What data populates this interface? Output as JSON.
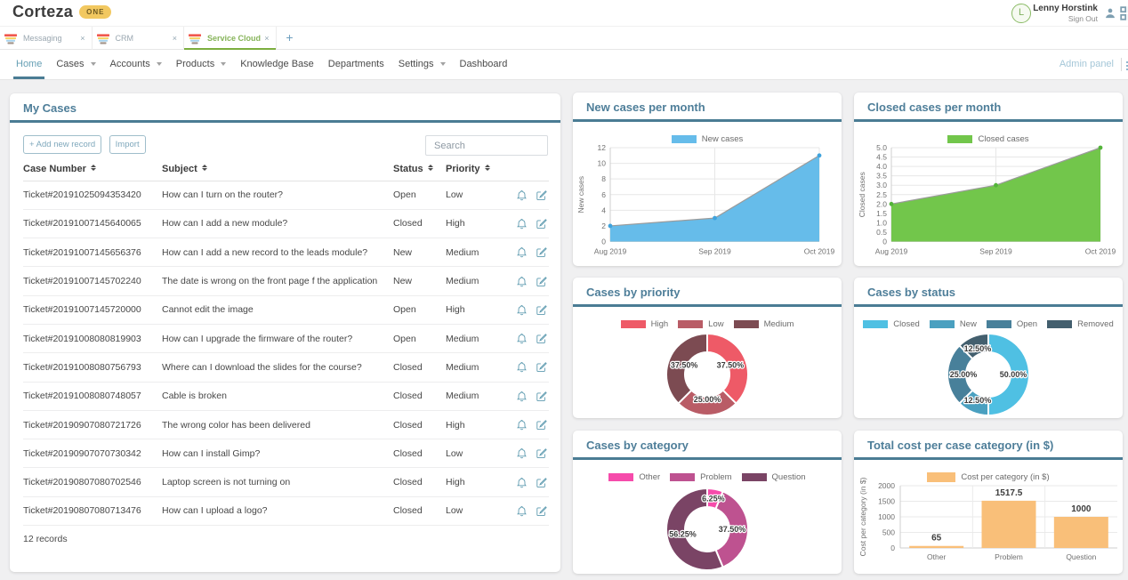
{
  "app": {
    "name": "Corteza",
    "badge": "ONE"
  },
  "user": {
    "initial": "L",
    "name": "Lenny Horstink",
    "sign_out": "Sign Out"
  },
  "icons": {
    "close": "×",
    "new_tab": "+"
  },
  "tabs": [
    {
      "label": "Messaging",
      "active": false
    },
    {
      "label": "CRM",
      "active": false
    },
    {
      "label": "Service Cloud",
      "active": true
    }
  ],
  "nav": {
    "items": [
      {
        "label": "Home",
        "active": true,
        "caret": false
      },
      {
        "label": "Cases",
        "active": false,
        "caret": true
      },
      {
        "label": "Accounts",
        "active": false,
        "caret": true
      },
      {
        "label": "Products",
        "active": false,
        "caret": true
      },
      {
        "label": "Knowledge Base",
        "active": false,
        "caret": false
      },
      {
        "label": "Departments",
        "active": false,
        "caret": false
      },
      {
        "label": "Settings",
        "active": false,
        "caret": true
      },
      {
        "label": "Dashboard",
        "active": false,
        "caret": false
      }
    ],
    "admin_panel": "Admin panel"
  },
  "cases_panel": {
    "title": "My Cases",
    "add_button": "+ Add new record",
    "import_button": "Import",
    "search_placeholder": "Search",
    "columns": [
      "Case Number",
      "Subject",
      "Status",
      "Priority"
    ],
    "rows": [
      {
        "case_number": "Ticket#20191025094353420",
        "subject": "How can I turn on the router?",
        "status": "Open",
        "priority": "Low"
      },
      {
        "case_number": "Ticket#20191007145640065",
        "subject": "How can I add a new module?",
        "status": "Closed",
        "priority": "High"
      },
      {
        "case_number": "Ticket#20191007145656376",
        "subject": "How can I add a new record to the leads module?",
        "status": "New",
        "priority": "Medium"
      },
      {
        "case_number": "Ticket#20191007145702240",
        "subject": "The date is wrong on the front page f the application",
        "status": "New",
        "priority": "Medium"
      },
      {
        "case_number": "Ticket#20191007145720000",
        "subject": "Cannot edit the image",
        "status": "Open",
        "priority": "High"
      },
      {
        "case_number": "Ticket#20191008080819903",
        "subject": "How can I upgrade the firmware of the router?",
        "status": "Open",
        "priority": "Medium"
      },
      {
        "case_number": "Ticket#20191008080756793",
        "subject": "Where can I download the slides for the course?",
        "status": "Closed",
        "priority": "Medium"
      },
      {
        "case_number": "Ticket#20191008080748057",
        "subject": "Cable is broken",
        "status": "Closed",
        "priority": "Medium"
      },
      {
        "case_number": "Ticket#20190907080721726",
        "subject": "The wrong color has been delivered",
        "status": "Closed",
        "priority": "High"
      },
      {
        "case_number": "Ticket#20190907070730342",
        "subject": "How can I install Gimp?",
        "status": "Closed",
        "priority": "Low"
      },
      {
        "case_number": "Ticket#20190807080702546",
        "subject": "Laptop screen is not turning on",
        "status": "Closed",
        "priority": "High"
      },
      {
        "case_number": "Ticket#20190807080713476",
        "subject": "How can I upload a logo?",
        "status": "Closed",
        "priority": "Low"
      }
    ],
    "footer": "12 records"
  },
  "chart_data": [
    {
      "type": "area",
      "title": "New cases per month",
      "legend": "New cases",
      "ylabel": "New cases",
      "x": [
        "Aug 2019",
        "Sep 2019",
        "Oct 2019"
      ],
      "values": [
        2,
        3,
        11
      ],
      "ylim": [
        0,
        12
      ],
      "yticks": [
        0,
        2,
        4,
        6,
        8,
        10,
        12
      ],
      "ytick_labels": [
        "0",
        "2",
        "4",
        "6",
        "8",
        "10",
        "12"
      ],
      "fill_color": "#66BCEA",
      "dot_color": "#3FA3DD"
    },
    {
      "type": "area",
      "title": "Closed cases per month",
      "legend": "Closed cases",
      "ylabel": "Closed cases",
      "x": [
        "Aug 2019",
        "Sep 2019",
        "Oct 2019"
      ],
      "values": [
        2,
        3,
        5
      ],
      "ylim": [
        0,
        5
      ],
      "yticks": [
        0,
        0.5,
        1,
        1.5,
        2,
        2.5,
        3,
        3.5,
        4,
        4.5,
        5
      ],
      "ytick_labels": [
        "0",
        "0.5",
        "1.0",
        "1.5",
        "2.0",
        "2.5",
        "3.0",
        "3.5",
        "4.0",
        "4.5",
        "5.0"
      ],
      "fill_color": "#72C64B",
      "dot_color": "#54B43A"
    },
    {
      "type": "donut",
      "title": "Cases by priority",
      "segments": [
        {
          "label": "High",
          "value": 37.5,
          "pct_label": "37.50%",
          "color": "#EE5A67"
        },
        {
          "label": "Low",
          "value": 25,
          "pct_label": "25.00%",
          "color": "#B95C66"
        },
        {
          "label": "Medium",
          "value": 37.5,
          "pct_label": "37.50%",
          "color": "#7C4B52"
        }
      ]
    },
    {
      "type": "donut",
      "title": "Cases by status",
      "segments": [
        {
          "label": "Closed",
          "value": 50,
          "pct_label": "50.00%",
          "color": "#4FC0E3"
        },
        {
          "label": "New",
          "value": 12.5,
          "pct_label": "12.50%",
          "color": "#4AA0C0"
        },
        {
          "label": "Open",
          "value": 25,
          "pct_label": "25.00%",
          "color": "#48809A"
        },
        {
          "label": "Removed",
          "value": 12.5,
          "pct_label": "12.50%",
          "color": "#435F6E"
        }
      ]
    },
    {
      "type": "donut",
      "title": "Cases by category",
      "segments": [
        {
          "label": "Other",
          "value": 6.25,
          "pct_label": "6.25%",
          "color": "#F64BAB"
        },
        {
          "label": "Problem",
          "value": 37.5,
          "pct_label": "37.50%",
          "color": "#BE5290"
        },
        {
          "label": "Question",
          "value": 56.25,
          "pct_label": "56.25%",
          "color": "#7A4465"
        }
      ]
    },
    {
      "type": "bar",
      "title": "Total cost per case category (in $)",
      "legend": "Cost per category (in $)",
      "ylabel": "Cost per category (in $)",
      "categories": [
        "Other",
        "Problem",
        "Question"
      ],
      "values": [
        65,
        1517.5,
        1000
      ],
      "value_labels": [
        "65",
        "1517.5",
        "1000"
      ],
      "ylim": [
        0,
        2000
      ],
      "yticks": [
        0,
        500,
        1000,
        1500,
        2000
      ],
      "ytick_labels": [
        "0",
        "500",
        "1000",
        "1500",
        "2000"
      ],
      "bar_color": "#F9BF79"
    }
  ],
  "colors": {
    "accent_teal": "#4A7C94",
    "title_teal": "#4E7E99",
    "active_tab_green": "#7CAE3F",
    "logo_badge_gold": "#F2C860"
  }
}
